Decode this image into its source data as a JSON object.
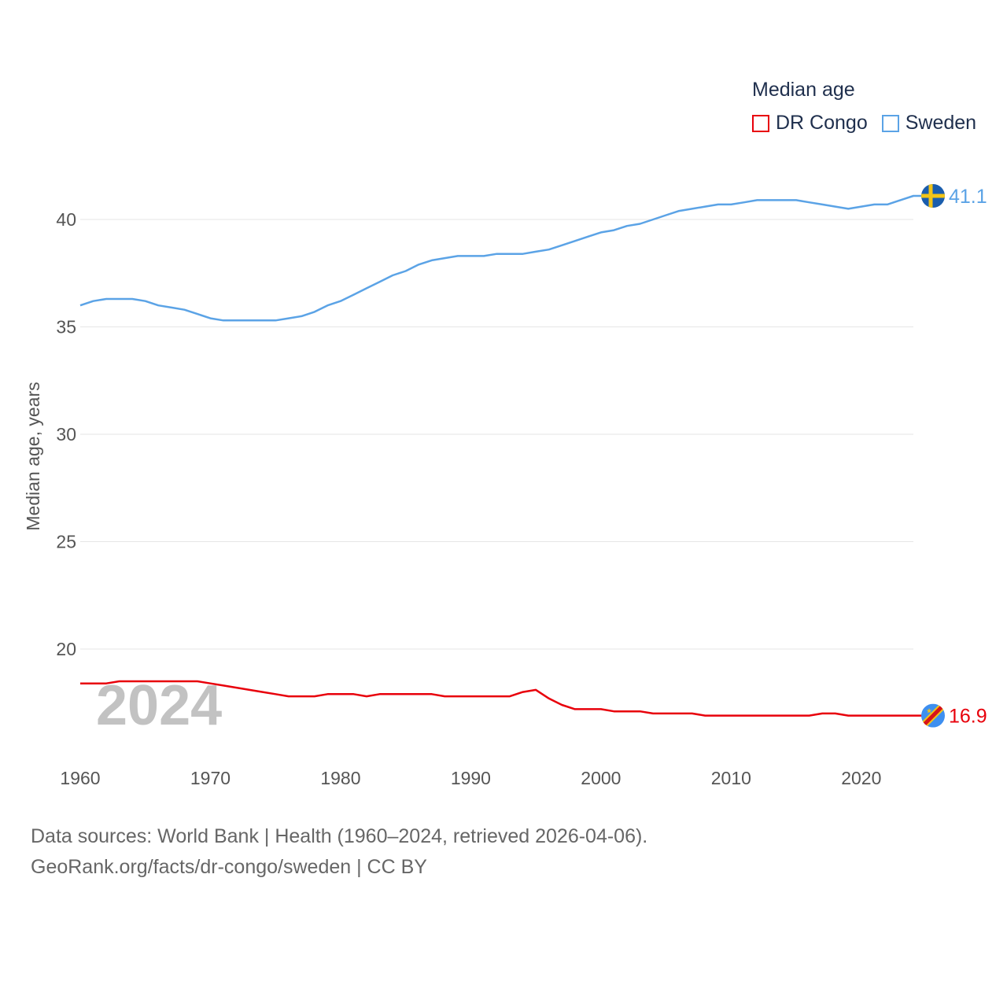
{
  "legend": {
    "title": "Median age",
    "items": [
      {
        "label": "DR Congo",
        "color": "#e8000b"
      },
      {
        "label": "Sweden",
        "color": "#5ba3e6"
      }
    ]
  },
  "source": {
    "line1": "Data sources: World Bank | Health (1960–2024, retrieved 2026-04-06).",
    "line2": "GeoRank.org/facts/dr-congo/sweden | CC BY"
  },
  "chart_data": {
    "type": "line",
    "title": "Median age",
    "xlabel": "",
    "ylabel": "Median age, years",
    "xlim": [
      1960,
      2024
    ],
    "ylim": [
      15.5,
      42.5
    ],
    "yticks": [
      20,
      25,
      30,
      35,
      40
    ],
    "xticks": [
      1960,
      1970,
      1980,
      1990,
      2000,
      2010,
      2020
    ],
    "year_marker": "2024",
    "x": [
      1960,
      1961,
      1962,
      1963,
      1964,
      1965,
      1966,
      1967,
      1968,
      1969,
      1970,
      1971,
      1972,
      1973,
      1974,
      1975,
      1976,
      1977,
      1978,
      1979,
      1980,
      1981,
      1982,
      1983,
      1984,
      1985,
      1986,
      1987,
      1988,
      1989,
      1990,
      1991,
      1992,
      1993,
      1994,
      1995,
      1996,
      1997,
      1998,
      1999,
      2000,
      2001,
      2002,
      2003,
      2004,
      2005,
      2006,
      2007,
      2008,
      2009,
      2010,
      2011,
      2012,
      2013,
      2014,
      2015,
      2016,
      2017,
      2018,
      2019,
      2020,
      2021,
      2022,
      2023,
      2024
    ],
    "series": [
      {
        "name": "DR Congo",
        "color": "#e8000b",
        "end_label": "16.9",
        "values": [
          18.4,
          18.4,
          18.4,
          18.5,
          18.5,
          18.5,
          18.5,
          18.5,
          18.5,
          18.5,
          18.4,
          18.3,
          18.2,
          18.1,
          18.0,
          17.9,
          17.8,
          17.8,
          17.8,
          17.9,
          17.9,
          17.9,
          17.8,
          17.9,
          17.9,
          17.9,
          17.9,
          17.9,
          17.8,
          17.8,
          17.8,
          17.8,
          17.8,
          17.8,
          18.0,
          18.1,
          17.7,
          17.4,
          17.2,
          17.2,
          17.2,
          17.1,
          17.1,
          17.1,
          17.0,
          17.0,
          17.0,
          17.0,
          16.9,
          16.9,
          16.9,
          16.9,
          16.9,
          16.9,
          16.9,
          16.9,
          16.9,
          17.0,
          17.0,
          16.9,
          16.9,
          16.9,
          16.9,
          16.9,
          16.9
        ]
      },
      {
        "name": "Sweden",
        "color": "#5ba3e6",
        "end_label": "41.1",
        "values": [
          36.0,
          36.2,
          36.3,
          36.3,
          36.3,
          36.2,
          36.0,
          35.9,
          35.8,
          35.6,
          35.4,
          35.3,
          35.3,
          35.3,
          35.3,
          35.3,
          35.4,
          35.5,
          35.7,
          36.0,
          36.2,
          36.5,
          36.8,
          37.1,
          37.4,
          37.6,
          37.9,
          38.1,
          38.2,
          38.3,
          38.3,
          38.3,
          38.4,
          38.4,
          38.4,
          38.5,
          38.6,
          38.8,
          39.0,
          39.2,
          39.4,
          39.5,
          39.7,
          39.8,
          40.0,
          40.2,
          40.4,
          40.5,
          40.6,
          40.7,
          40.7,
          40.8,
          40.9,
          40.9,
          40.9,
          40.9,
          40.8,
          40.7,
          40.6,
          40.5,
          40.6,
          40.7,
          40.7,
          40.9,
          41.1
        ]
      }
    ]
  }
}
